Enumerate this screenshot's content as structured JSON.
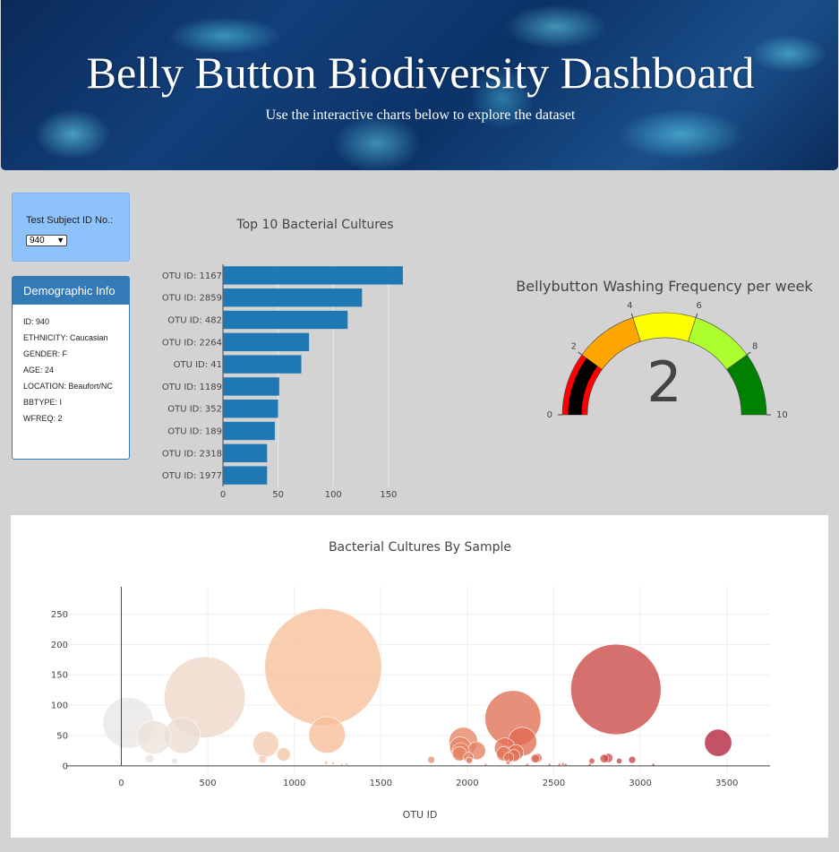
{
  "header": {
    "title": "Belly Button Biodiversity Dashboard",
    "subtitle": "Use the interactive charts below to explore the dataset"
  },
  "selector": {
    "label": "Test Subject ID No.:",
    "value": "940"
  },
  "demographic": {
    "title": "Demographic Info",
    "lines": [
      "ID: 940",
      "ETHNICITY: Caucasian",
      "GENDER: F",
      "AGE: 24",
      "LOCATION: Beaufort/NC",
      "BBTYPE: I",
      "WFREQ: 2"
    ]
  },
  "chart_data": [
    {
      "type": "bar",
      "orientation": "horizontal",
      "title": "Top 10 Bacterial Cultures",
      "categories": [
        "OTU ID: 1167",
        "OTU ID: 2859",
        "OTU ID: 482",
        "OTU ID: 2264",
        "OTU ID: 41",
        "OTU ID: 1189",
        "OTU ID: 352",
        "OTU ID: 189",
        "OTU ID: 2318",
        "OTU ID: 1977"
      ],
      "values": [
        163,
        126,
        113,
        78,
        71,
        51,
        50,
        47,
        40,
        40
      ],
      "xticks": [
        0,
        50,
        100,
        150
      ],
      "xlim": [
        0,
        172
      ],
      "color": "#1f77b4"
    },
    {
      "type": "gauge",
      "title": "Bellybutton Washing Frequency per week",
      "value": 2,
      "range": [
        0,
        10
      ],
      "ticks": [
        0,
        2,
        4,
        6,
        8,
        10
      ],
      "steps": [
        {
          "range": [
            0,
            2
          ],
          "color": "#ff0000"
        },
        {
          "range": [
            2,
            4
          ],
          "color": "#ffa500"
        },
        {
          "range": [
            4,
            6
          ],
          "color": "#ffff00"
        },
        {
          "range": [
            6,
            8
          ],
          "color": "#adff2f"
        },
        {
          "range": [
            8,
            10
          ],
          "color": "#008000"
        }
      ],
      "bar_color": "#000000"
    },
    {
      "type": "scatter",
      "subtype": "bubble",
      "title": "Bacterial Cultures By Sample",
      "xlabel": "OTU ID",
      "xlim": [
        -370,
        3750
      ],
      "ylim": [
        -12,
        295
      ],
      "xticks": [
        0,
        500,
        1000,
        1500,
        2000,
        2500,
        3000,
        3500
      ],
      "yticks": [
        0,
        50,
        100,
        150,
        200,
        250
      ],
      "points": [
        {
          "x": 1167,
          "y": 163
        },
        {
          "x": 2859,
          "y": 126
        },
        {
          "x": 482,
          "y": 113
        },
        {
          "x": 2264,
          "y": 78
        },
        {
          "x": 41,
          "y": 71
        },
        {
          "x": 1189,
          "y": 51
        },
        {
          "x": 352,
          "y": 50
        },
        {
          "x": 189,
          "y": 47
        },
        {
          "x": 2318,
          "y": 40
        },
        {
          "x": 3450,
          "y": 38
        },
        {
          "x": 1977,
          "y": 40
        },
        {
          "x": 1960,
          "y": 30
        },
        {
          "x": 835,
          "y": 36
        },
        {
          "x": 2217,
          "y": 29
        },
        {
          "x": 2054,
          "y": 25
        },
        {
          "x": 1962,
          "y": 24
        },
        {
          "x": 2210,
          "y": 20
        },
        {
          "x": 1955,
          "y": 20
        },
        {
          "x": 2279,
          "y": 22
        },
        {
          "x": 2269,
          "y": 17
        },
        {
          "x": 938,
          "y": 19
        },
        {
          "x": 2007,
          "y": 14
        },
        {
          "x": 2240,
          "y": 14
        },
        {
          "x": 2405,
          "y": 13
        },
        {
          "x": 2393,
          "y": 12
        },
        {
          "x": 2815,
          "y": 13
        },
        {
          "x": 2792,
          "y": 12
        },
        {
          "x": 2953,
          "y": 10
        },
        {
          "x": 1792,
          "y": 10
        },
        {
          "x": 2720,
          "y": 8
        },
        {
          "x": 2878,
          "y": 8
        },
        {
          "x": 2011,
          "y": 9
        },
        {
          "x": 164,
          "y": 12
        },
        {
          "x": 816,
          "y": 11
        },
        {
          "x": 308,
          "y": 8
        },
        {
          "x": 1184,
          "y": 5
        },
        {
          "x": 1224,
          "y": 4
        },
        {
          "x": 1302,
          "y": 3
        },
        {
          "x": 2235,
          "y": 5
        },
        {
          "x": 2553,
          "y": 3
        },
        {
          "x": 2532,
          "y": 2
        },
        {
          "x": 2569,
          "y": 2
        },
        {
          "x": 2475,
          "y": 2
        },
        {
          "x": 2346,
          "y": 2
        },
        {
          "x": 2106,
          "y": 2
        },
        {
          "x": 2708,
          "y": 2
        },
        {
          "x": 3075,
          "y": 2
        },
        {
          "x": 1275,
          "y": 2
        }
      ],
      "colorscale": [
        "#e8e8e8",
        "#f7c09a",
        "#e06b50",
        "#b21e3a"
      ]
    }
  ]
}
